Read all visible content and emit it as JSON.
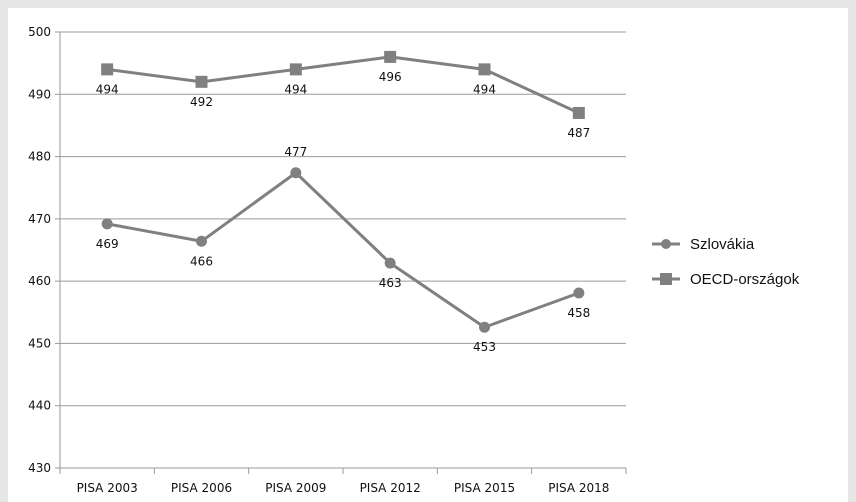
{
  "chart_data": {
    "type": "line",
    "categories": [
      "PISA 2003",
      "PISA 2006",
      "PISA 2009",
      "PISA 2012",
      "PISA 2015",
      "PISA 2018"
    ],
    "series": [
      {
        "name": "Szlovákia",
        "marker": "circle",
        "values": [
          469,
          466,
          477,
          463,
          453,
          458
        ],
        "plotted": [
          469.2,
          466.4,
          477.4,
          462.9,
          452.6,
          458.1
        ],
        "labels": [
          "469",
          "466",
          "477",
          "463",
          "453",
          "458"
        ],
        "color": "#808080"
      },
      {
        "name": "OECD-országok",
        "marker": "square",
        "values": [
          494,
          492,
          494,
          496,
          494,
          487
        ],
        "plotted": [
          494.0,
          492.0,
          494.0,
          496.0,
          494.0,
          487.0
        ],
        "labels": [
          "494",
          "492",
          "494",
          "496",
          "494",
          "487"
        ],
        "color": "#808080"
      }
    ],
    "ylim": [
      430,
      500
    ],
    "yticks": [
      "430",
      "440",
      "450",
      "460",
      "470",
      "480",
      "490",
      "500"
    ],
    "title": "",
    "xlabel": "",
    "ylabel": "",
    "grid": true,
    "legend_position": "right"
  }
}
